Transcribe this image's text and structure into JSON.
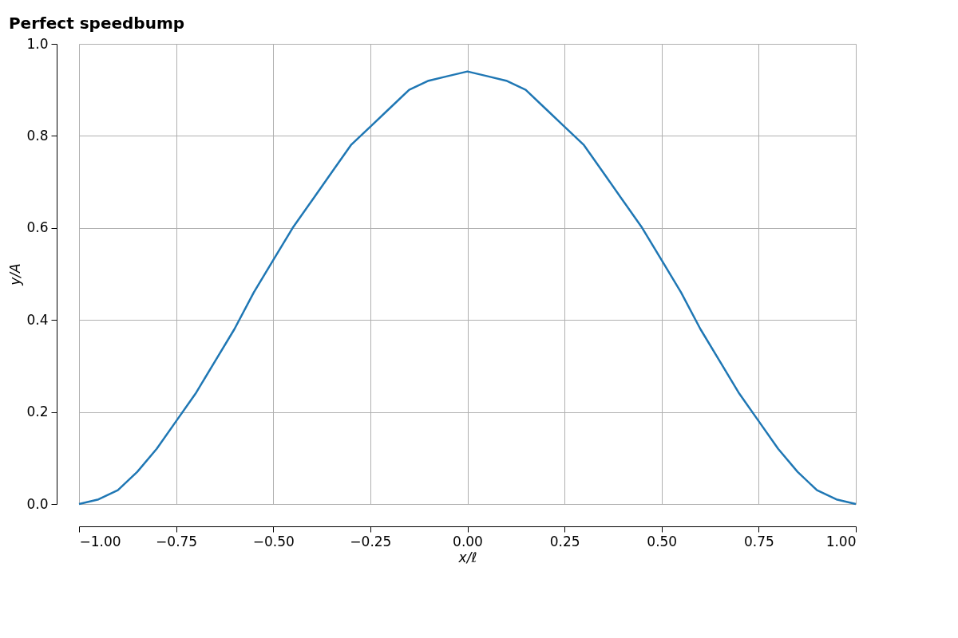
{
  "chart_data": {
    "type": "line",
    "title": "Perfect speedbump",
    "xlabel": "x/ℓ",
    "ylabel": "y/A",
    "x": [
      -1,
      -0.95,
      -0.9,
      -0.85,
      -0.8,
      -0.75,
      -0.7,
      -0.65,
      -0.6,
      -0.55,
      -0.5,
      -0.45,
      -0.4,
      -0.35,
      -0.3,
      -0.25,
      -0.2,
      -0.15,
      -0.1,
      -0.05,
      0,
      0.05,
      0.1,
      0.15,
      0.2,
      0.25,
      0.3,
      0.35,
      0.4,
      0.45,
      0.5,
      0.55,
      0.6,
      0.65,
      0.7,
      0.75,
      0.8,
      0.85,
      0.9,
      0.95,
      1
    ],
    "series": [
      {
        "color": "#1f77b4",
        "values": [
          0,
          0.01,
          0.03,
          0.07,
          0.12,
          0.18,
          0.24,
          0.31,
          0.38,
          0.46,
          0.53,
          0.6,
          0.66,
          0.72,
          0.78,
          0.82,
          0.86,
          0.9,
          0.92,
          0.93,
          0.94,
          0.93,
          0.92,
          0.9,
          0.86,
          0.82,
          0.78,
          0.72,
          0.66,
          0.6,
          0.53,
          0.46,
          0.38,
          0.31,
          0.24,
          0.18,
          0.12,
          0.07,
          0.03,
          0.01,
          0
        ]
      }
    ],
    "xlim": [
      -1,
      1
    ],
    "xticks": [
      {
        "value": -1,
        "label": "−1.00"
      },
      {
        "value": -0.75,
        "label": "−0.75"
      },
      {
        "value": -0.5,
        "label": "−0.50"
      },
      {
        "value": -0.25,
        "label": "−0.25"
      },
      {
        "value": 0,
        "label": "0.00"
      },
      {
        "value": 0.25,
        "label": "0.25"
      },
      {
        "value": 0.5,
        "label": "0.50"
      },
      {
        "value": 0.75,
        "label": "0.75"
      },
      {
        "value": 1,
        "label": "1.00"
      }
    ],
    "ylim": [
      0,
      1
    ],
    "yticks": [
      {
        "value": 0,
        "label": "0.0"
      },
      {
        "value": 0.2,
        "label": "0.2"
      },
      {
        "value": 0.4,
        "label": "0.4"
      },
      {
        "value": 0.6,
        "label": "0.6"
      },
      {
        "value": 0.8,
        "label": "0.8"
      },
      {
        "value": 1,
        "label": "1.0"
      }
    ],
    "grid": true,
    "marker": "none",
    "line_style": "solid"
  }
}
